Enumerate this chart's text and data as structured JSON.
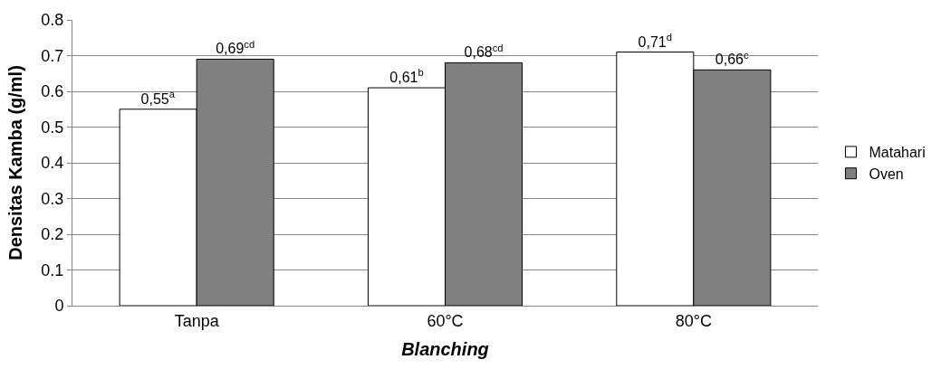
{
  "chart_data": {
    "type": "bar",
    "xlabel": "Blanching",
    "ylabel": "Densitas Kamba (g/ml)",
    "categories": [
      "Tanpa",
      "60°C",
      "80°C"
    ],
    "series": [
      {
        "name": "Matahari",
        "color": "#ffffff",
        "values": [
          0.55,
          0.61,
          0.71
        ],
        "value_labels": [
          "0,55$^{a}$",
          "0,61$^{b}$",
          "0,71$^{d}$"
        ]
      },
      {
        "name": "Oven",
        "color": "#808080",
        "values": [
          0.69,
          0.68,
          0.66
        ],
        "value_labels": [
          "0,69$^{cd}$",
          "0,68$^{cd}$",
          "0,66$^{c}$"
        ]
      }
    ],
    "ylim": [
      0,
      0.8
    ],
    "yticks": [
      0,
      0.1,
      0.2,
      0.3,
      0.4,
      0.5,
      0.6,
      0.7,
      0.8
    ],
    "grid": "y",
    "legend": "right"
  }
}
